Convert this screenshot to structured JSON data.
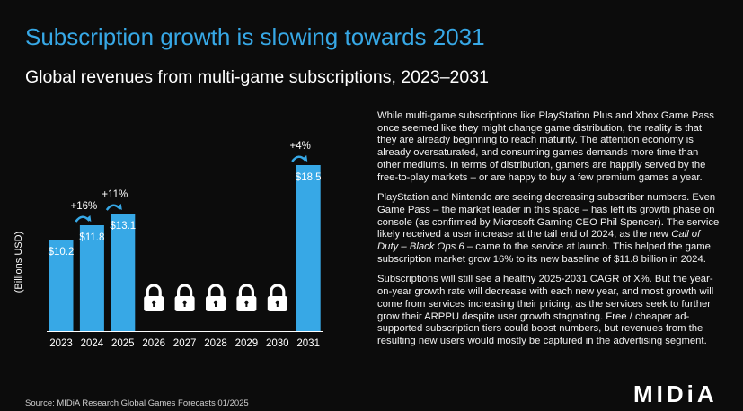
{
  "header": {
    "title": "Subscription growth is slowing towards 2031",
    "subtitle": "Global revenues from multi-game subscriptions, 2023–2031"
  },
  "chart_data": {
    "type": "bar",
    "categories": [
      "2023",
      "2024",
      "2025",
      "2026",
      "2027",
      "2028",
      "2029",
      "2030",
      "2031"
    ],
    "values": [
      10.2,
      11.8,
      13.1,
      null,
      null,
      null,
      null,
      null,
      18.5
    ],
    "data_labels": [
      "$10.2",
      "$11.8",
      "$13.1",
      "",
      "",
      "",
      "",
      "",
      "$18.5"
    ],
    "locked_categories": [
      "2026",
      "2027",
      "2028",
      "2029",
      "2030"
    ],
    "growth_labels": [
      {
        "category": "2024",
        "label": "+16%"
      },
      {
        "category": "2025",
        "label": "+11%"
      },
      {
        "category": "2031",
        "label": "+4%"
      }
    ],
    "ylabel": "(Billions USD)",
    "ylim": [
      0,
      19.5
    ],
    "grid": false,
    "bar_color": "#37a8e6"
  },
  "commentary": {
    "p1": "While multi-game subscriptions like PlayStation Plus and Xbox Game Pass once seemed like they might change game distribution, the reality is that they are already beginning to reach maturity. The attention economy is already oversaturated, and consuming games demands more time than other mediums. In terms of distribution, gamers are happily served by the free-to-play markets – or are happy to buy a few premium games a year.",
    "p2_a": "PlayStation and Nintendo are seeing decreasing subscriber numbers. Even Game Pass – the market leader in this space – has left its growth phase on console (as confirmed by Microsoft Gaming CEO Phil Spencer). The service likely received a user increase at the tail end of 2024, as the new ",
    "p2_em": "Call of Duty – Black Ops 6",
    "p2_b": " – came to the service at launch. This helped the game subscription market grow 16% to its new baseline of $11.8 billion in 2024.",
    "p3": "Subscriptions will still see a healthy 2025-2031 CAGR of X%. But the year-on-year growth rate will decrease with each new year, and most growth will come from services increasing their pricing, as the services seek to further grow their ARPPU despite user growth stagnating. Free / cheaper ad-supported subscription tiers could boost numbers, but revenues from the resulting new users would mostly be captured in the advertising segment."
  },
  "source": "Source: MIDiA Research Global Games Forecasts 01/2025",
  "logo": "MIDiA",
  "colors": {
    "accent": "#37a8e6",
    "background": "#0c0c0c",
    "text": "#ffffff"
  }
}
